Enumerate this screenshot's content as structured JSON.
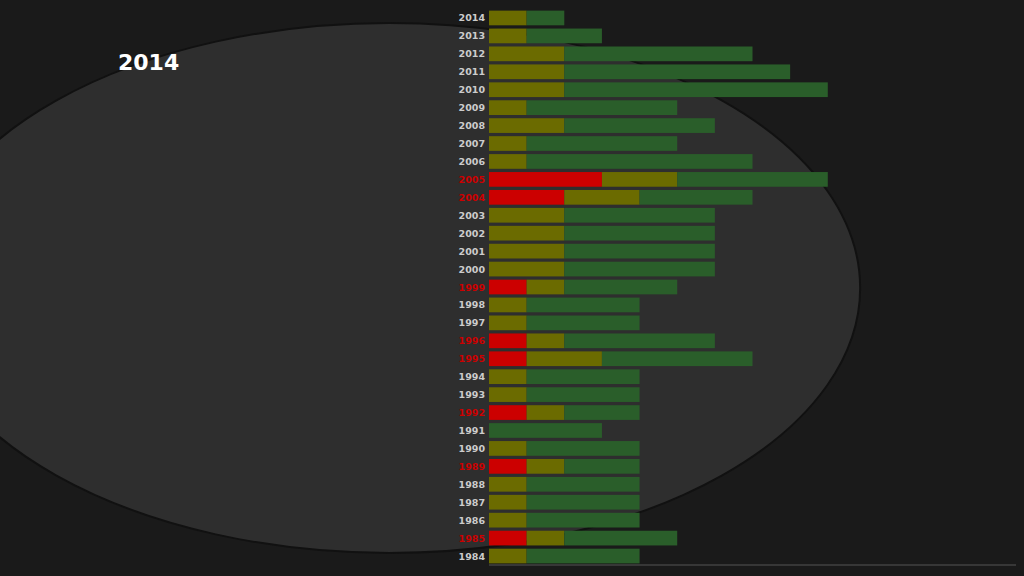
{
  "chart_data": {
    "type": "bar",
    "orientation": "horizontal",
    "stacked": true,
    "title": "2014",
    "categories": [
      "1984",
      "1985",
      "1986",
      "1987",
      "1988",
      "1989",
      "1990",
      "1991",
      "1992",
      "1993",
      "1994",
      "1995",
      "1996",
      "1997",
      "1998",
      "1999",
      "2000",
      "2001",
      "2002",
      "2003",
      "2004",
      "2005",
      "2006",
      "2007",
      "2008",
      "2009",
      "2010",
      "2011",
      "2012",
      "2013",
      "2014"
    ],
    "series": [
      {
        "color": "#cc0000",
        "values": [
          0,
          1,
          0,
          0,
          0,
          1,
          0,
          0,
          1,
          0,
          0,
          1,
          1,
          0,
          0,
          1,
          0,
          0,
          0,
          0,
          2,
          3,
          0,
          0,
          0,
          0,
          0,
          0,
          0,
          0,
          0
        ]
      },
      {
        "color": "#6b6b00",
        "values": [
          1,
          1,
          1,
          1,
          1,
          1,
          1,
          0,
          1,
          1,
          1,
          2,
          1,
          1,
          1,
          1,
          2,
          2,
          2,
          2,
          2,
          2,
          1,
          1,
          2,
          1,
          2,
          2,
          2,
          1,
          1
        ]
      },
      {
        "color": "#2a5e2a",
        "values": [
          3,
          3,
          3,
          3,
          3,
          2,
          3,
          3,
          2,
          3,
          3,
          4,
          4,
          3,
          3,
          3,
          4,
          4,
          4,
          4,
          3,
          4,
          6,
          4,
          4,
          4,
          7,
          6,
          5,
          2,
          1
        ]
      }
    ],
    "xlim": [
      0,
      14
    ],
    "xticks": [],
    "grid": false,
    "tick_labels": "y"
  }
}
